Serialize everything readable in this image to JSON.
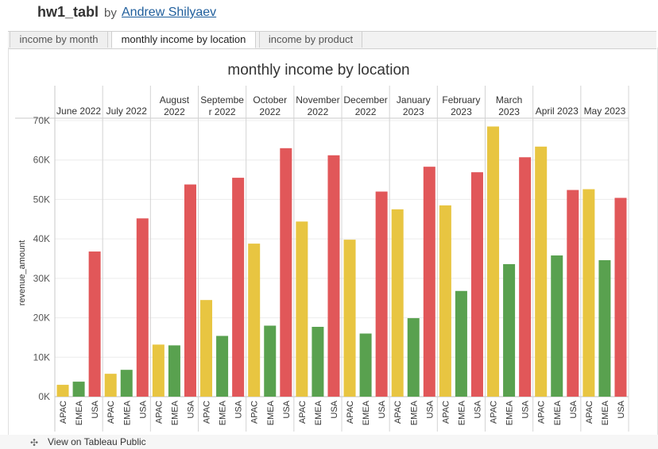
{
  "header": {
    "title": "hw1_tabl",
    "by": "by",
    "author": "Andrew Shilyaev"
  },
  "tabs": [
    {
      "label": "income by month",
      "active": false
    },
    {
      "label": "monthly income by location",
      "active": true
    },
    {
      "label": "income by product",
      "active": false
    }
  ],
  "footer": {
    "icon": "tableau-logo-icon",
    "label": "View on Tableau Public"
  },
  "colors": {
    "APAC": "#e8c541",
    "EMEA": "#59a14f",
    "USA": "#e15759"
  },
  "chart_data": {
    "type": "bar",
    "title": "monthly income by location",
    "xlabel": "",
    "ylabel": "revenue_amount",
    "ylim": [
      0,
      70000
    ],
    "yticks": [
      "0K",
      "10K",
      "20K",
      "30K",
      "40K",
      "50K",
      "60K",
      "70K"
    ],
    "ytick_values": [
      0,
      10000,
      20000,
      30000,
      40000,
      50000,
      60000,
      70000
    ],
    "grid": true,
    "legend": "none",
    "locations": [
      "APAC",
      "EMEA",
      "USA"
    ],
    "months": [
      {
        "label": [
          "June 2022"
        ],
        "values": [
          3000,
          3800,
          36800
        ]
      },
      {
        "label": [
          "July 2022"
        ],
        "values": [
          5800,
          6800,
          45200
        ]
      },
      {
        "label": [
          "August",
          "2022"
        ],
        "values": [
          13200,
          13000,
          53800
        ]
      },
      {
        "label": [
          "Septembe",
          "r 2022"
        ],
        "values": [
          24500,
          15400,
          55500
        ]
      },
      {
        "label": [
          "October",
          "2022"
        ],
        "values": [
          38800,
          18000,
          63000
        ]
      },
      {
        "label": [
          "November",
          "2022"
        ],
        "values": [
          44400,
          17700,
          61200
        ]
      },
      {
        "label": [
          "December",
          "2022"
        ],
        "values": [
          39800,
          16000,
          52000
        ]
      },
      {
        "label": [
          "January",
          "2023"
        ],
        "values": [
          47500,
          19900,
          58300
        ]
      },
      {
        "label": [
          "February",
          "2023"
        ],
        "values": [
          48500,
          26800,
          56900
        ]
      },
      {
        "label": [
          "March",
          "2023"
        ],
        "values": [
          68500,
          33600,
          60700
        ]
      },
      {
        "label": [
          "April 2023"
        ],
        "values": [
          63400,
          35800,
          52400
        ]
      },
      {
        "label": [
          "May 2023"
        ],
        "values": [
          52600,
          34600,
          50400
        ]
      }
    ]
  }
}
